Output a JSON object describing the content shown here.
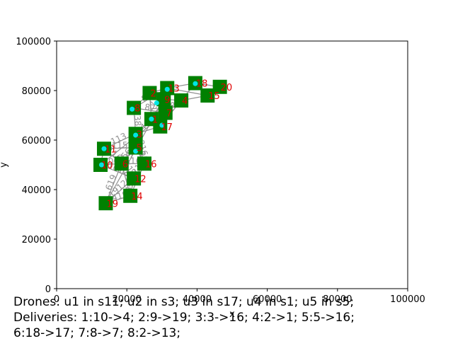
{
  "chart_data": {
    "type": "scatter",
    "title": "",
    "xlabel": "x",
    "ylabel": "y",
    "xlim": [
      0,
      100000
    ],
    "ylim": [
      0,
      100000
    ],
    "xticks": [
      "0",
      "20000",
      "40000",
      "60000",
      "80000",
      "100000"
    ],
    "yticks": [
      "0",
      "20000",
      "40000",
      "60000",
      "80000",
      "100000"
    ],
    "grid": false,
    "station_color": "#008000",
    "label_color": "#e00000",
    "edge_color": "#909090",
    "drone_color": "#00e5e5",
    "stations": [
      {
        "id": "1",
        "x": 27000,
        "y": 68500
      },
      {
        "id": "2",
        "x": 26500,
        "y": 79000
      },
      {
        "id": "3",
        "x": 22500,
        "y": 62500
      },
      {
        "id": "4",
        "x": 35500,
        "y": 76000
      },
      {
        "id": "5",
        "x": 22500,
        "y": 57000
      },
      {
        "id": "6",
        "x": 18500,
        "y": 50500
      },
      {
        "id": "7",
        "x": 31000,
        "y": 71000
      },
      {
        "id": "8",
        "x": 22000,
        "y": 73000
      },
      {
        "id": "9",
        "x": 30500,
        "y": 76500
      },
      {
        "id": "10",
        "x": 12500,
        "y": 50000
      },
      {
        "id": "11",
        "x": 13500,
        "y": 56500
      },
      {
        "id": "12",
        "x": 22000,
        "y": 44500
      },
      {
        "id": "13",
        "x": 31500,
        "y": 81000
      },
      {
        "id": "14",
        "x": 21000,
        "y": 37500
      },
      {
        "id": "15",
        "x": 43000,
        "y": 78000
      },
      {
        "id": "16",
        "x": 25000,
        "y": 50500
      },
      {
        "id": "17",
        "x": 29500,
        "y": 65500
      },
      {
        "id": "18",
        "x": 39500,
        "y": 83000
      },
      {
        "id": "19",
        "x": 14000,
        "y": 34500
      },
      {
        "id": "20",
        "x": 46500,
        "y": 81500
      }
    ],
    "drones": [
      {
        "id": "u1",
        "station": "11",
        "x": 13500,
        "y": 56500
      },
      {
        "id": "u2",
        "station": "3",
        "x": 22500,
        "y": 62000
      },
      {
        "id": "u3",
        "station": "17",
        "x": 30000,
        "y": 66000
      },
      {
        "id": "u4",
        "station": "1",
        "x": 27000,
        "y": 68500
      },
      {
        "id": "u5",
        "station": "5",
        "x": 22500,
        "y": 55500
      },
      {
        "id": "d6",
        "station": "10",
        "x": 12800,
        "y": 50000
      },
      {
        "id": "d7",
        "station": "8",
        "x": 21500,
        "y": 72500
      },
      {
        "id": "d8",
        "station": "2",
        "x": 28500,
        "y": 75000
      },
      {
        "id": "d9",
        "station": "13",
        "x": 31500,
        "y": 80500
      },
      {
        "id": "d10",
        "station": "18",
        "x": 39500,
        "y": 82800
      }
    ],
    "edges": [
      [
        "10",
        "4"
      ],
      [
        "9",
        "19"
      ],
      [
        "3",
        "16"
      ],
      [
        "2",
        "1"
      ],
      [
        "5",
        "16"
      ],
      [
        "18",
        "17"
      ],
      [
        "8",
        "7"
      ],
      [
        "8",
        "13"
      ],
      [
        "11",
        "3"
      ],
      [
        "11",
        "6"
      ],
      [
        "11",
        "5"
      ],
      [
        "10",
        "6"
      ],
      [
        "10",
        "12"
      ],
      [
        "6",
        "12"
      ],
      [
        "6",
        "16"
      ],
      [
        "6",
        "14"
      ],
      [
        "6",
        "19"
      ],
      [
        "14",
        "12"
      ],
      [
        "14",
        "19"
      ],
      [
        "19",
        "12"
      ],
      [
        "12",
        "16"
      ],
      [
        "5",
        "3"
      ],
      [
        "5",
        "6"
      ],
      [
        "3",
        "8"
      ],
      [
        "3",
        "1"
      ],
      [
        "3",
        "17"
      ],
      [
        "1",
        "17"
      ],
      [
        "1",
        "7"
      ],
      [
        "1",
        "9"
      ],
      [
        "1",
        "2"
      ],
      [
        "7",
        "17"
      ],
      [
        "7",
        "9"
      ],
      [
        "7",
        "4"
      ],
      [
        "9",
        "2"
      ],
      [
        "9",
        "13"
      ],
      [
        "9",
        "4"
      ],
      [
        "2",
        "13"
      ],
      [
        "2",
        "8"
      ],
      [
        "13",
        "18"
      ],
      [
        "13",
        "4"
      ],
      [
        "4",
        "15"
      ],
      [
        "4",
        "18"
      ],
      [
        "18",
        "15"
      ],
      [
        "18",
        "20"
      ],
      [
        "15",
        "20"
      ],
      [
        "10",
        "11"
      ],
      [
        "14",
        "16"
      ],
      [
        "13",
        "15"
      ]
    ],
    "caption_lines": [
      "Drones: u1 in s11; u2 in s3; u3 in s17; u4 in s1; u5 in s5;",
      "Deliveries: 1:10->4; 2:9->19; 3:3->16; 4:2->1; 5:5->16;",
      "6:18->17; 7:8->7; 8:2->13;"
    ]
  }
}
